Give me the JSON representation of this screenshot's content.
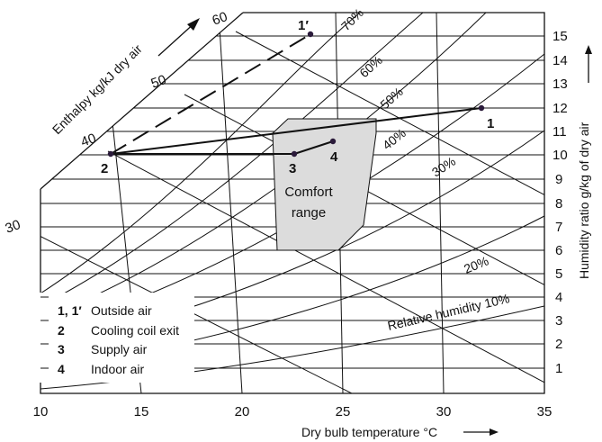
{
  "axes": {
    "x_label": "Dry bulb temperature °C",
    "y_label": "Humidity ratio g/kg of dry air",
    "enthalpy_label": "Enthalpy kg/kJ dry air",
    "x_ticks": [
      "10",
      "15",
      "20",
      "25",
      "30",
      "35"
    ],
    "y_ticks": [
      "1",
      "2",
      "3",
      "4",
      "5",
      "6",
      "7",
      "8",
      "9",
      "10",
      "11",
      "12",
      "13",
      "14",
      "15"
    ],
    "enthalpy_ticks": [
      "30",
      "40",
      "50",
      "60"
    ]
  },
  "rh_labels": [
    "Relative humidity 10%",
    "20%",
    "30%",
    "40%",
    "50%",
    "60%",
    "70%"
  ],
  "comfort": {
    "line1": "Comfort",
    "line2": "range"
  },
  "points": [
    {
      "id": "1",
      "label": "1"
    },
    {
      "id": "1p",
      "label": "1′"
    },
    {
      "id": "2",
      "label": "2"
    },
    {
      "id": "3",
      "label": "3"
    },
    {
      "id": "4",
      "label": "4"
    }
  ],
  "legend": [
    {
      "key": "1, 1′",
      "text": "Outside air"
    },
    {
      "key": "2",
      "text": "Cooling coil exit"
    },
    {
      "key": "3",
      "text": "Supply air"
    },
    {
      "key": "4",
      "text": "Indoor air"
    }
  ],
  "colors": {
    "comfort_fill": "#dcdcdc",
    "point": "#2a1a3a",
    "line": "#111111"
  }
}
